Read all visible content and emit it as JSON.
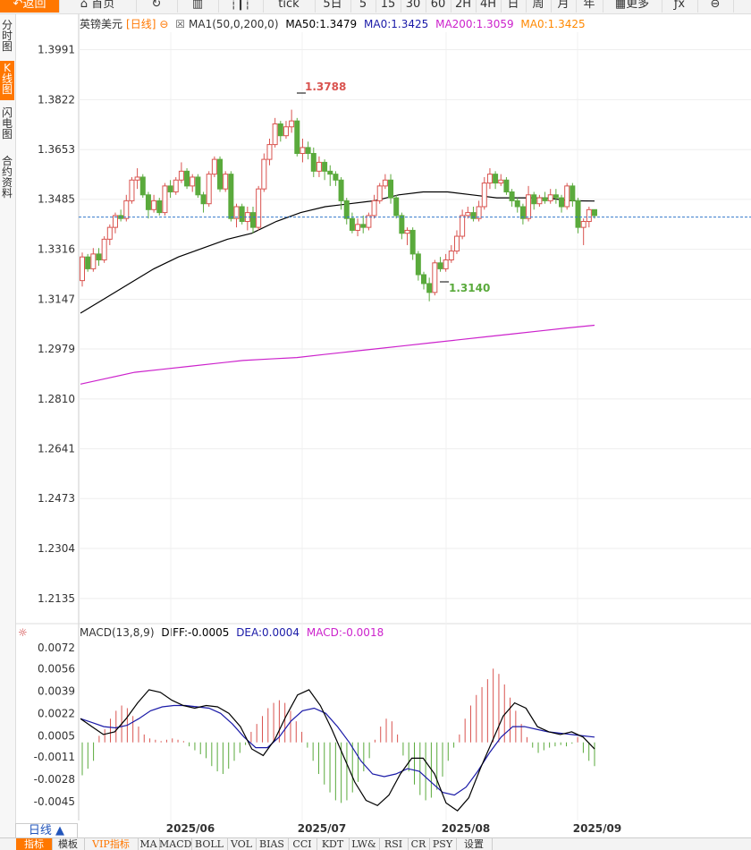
{
  "toolbar": {
    "back": "返回",
    "home": "首页",
    "tick": "tick",
    "day5": "5日",
    "m5": "5",
    "m15": "15",
    "m30": "30",
    "m60": "60",
    "h2": "2H",
    "h4": "4H",
    "day": "日",
    "week": "周",
    "month": "月",
    "year": "年",
    "more": "更多"
  },
  "sidebar": [
    "分时图",
    "K线图",
    "闪电图",
    "合约资料"
  ],
  "legend": {
    "symbol": "英镑美元",
    "period": "[日线]",
    "indicator": "MA1(50,0,200,0)",
    "ma50": "MA50:1.3479",
    "ma0a": "MA0:1.3425",
    "ma200": "MA200:1.3059",
    "ma0b": "MA0:1.3425"
  },
  "macd_legend": {
    "name": "MACD(13,8,9)",
    "diff": "DIFF:-0.0005",
    "dea": "DEA:0.0004",
    "macd": "MACD:-0.0018"
  },
  "period_button": "日线 ▲",
  "bottom_tabs": [
    "指标",
    "模板",
    "VIP指标",
    "MA",
    "MACD",
    "BOLL",
    "VOL",
    "BIAS",
    "CCI",
    "KDT",
    "LW&",
    "RSI",
    "CR",
    "PSY",
    "设置"
  ],
  "colors": {
    "up": "#d9534f",
    "down": "#5aaa3c",
    "ma50": "#000000",
    "ma200": "#cc22cc",
    "dea": "#1a1aa8",
    "current": "#3377cc"
  },
  "chart_data": {
    "type": "candlestick",
    "title": "英镑美元",
    "y_ticks": [
      1.3991,
      1.3822,
      1.3653,
      1.3485,
      1.3316,
      1.3147,
      1.2979,
      1.281,
      1.2641,
      1.2473,
      1.2304,
      1.2135
    ],
    "x_labels": [
      "2025/06",
      "2025/07",
      "2025/08",
      "2025/09"
    ],
    "current_price": 1.3425,
    "high_label": "1.3788",
    "low_label": "1.3140",
    "candles": [
      [
        1.321,
        1.329,
        1.319,
        1.3305
      ],
      [
        1.329,
        1.325,
        1.324,
        1.33
      ],
      [
        1.325,
        1.33,
        1.324,
        1.332
      ],
      [
        1.33,
        1.328,
        1.326,
        1.332
      ],
      [
        1.328,
        1.335,
        1.327,
        1.336
      ],
      [
        1.335,
        1.339,
        1.333,
        1.34
      ],
      [
        1.339,
        1.343,
        1.337,
        1.344
      ],
      [
        1.343,
        1.342,
        1.341,
        1.345
      ],
      [
        1.342,
        1.348,
        1.341,
        1.35
      ],
      [
        1.348,
        1.355,
        1.347,
        1.356
      ],
      [
        1.355,
        1.356,
        1.352,
        1.359
      ],
      [
        1.356,
        1.35,
        1.349,
        1.357
      ],
      [
        1.35,
        1.345,
        1.342,
        1.351
      ],
      [
        1.345,
        1.348,
        1.344,
        1.35
      ],
      [
        1.348,
        1.344,
        1.343,
        1.349
      ],
      [
        1.344,
        1.353,
        1.343,
        1.354
      ],
      [
        1.353,
        1.351,
        1.349,
        1.355
      ],
      [
        1.351,
        1.355,
        1.35,
        1.356
      ],
      [
        1.355,
        1.358,
        1.354,
        1.361
      ],
      [
        1.358,
        1.353,
        1.352,
        1.359
      ],
      [
        1.353,
        1.356,
        1.351,
        1.357
      ],
      [
        1.356,
        1.35,
        1.349,
        1.357
      ],
      [
        1.35,
        1.347,
        1.344,
        1.351
      ],
      [
        1.347,
        1.357,
        1.346,
        1.358
      ],
      [
        1.357,
        1.362,
        1.356,
        1.363
      ],
      [
        1.362,
        1.352,
        1.351,
        1.363
      ],
      [
        1.352,
        1.357,
        1.351,
        1.358
      ],
      [
        1.357,
        1.342,
        1.341,
        1.358
      ],
      [
        1.342,
        1.346,
        1.339,
        1.347
      ],
      [
        1.346,
        1.341,
        1.34,
        1.347
      ],
      [
        1.341,
        1.344,
        1.338,
        1.346
      ],
      [
        1.344,
        1.339,
        1.337,
        1.346
      ],
      [
        1.339,
        1.352,
        1.338,
        1.353
      ],
      [
        1.352,
        1.362,
        1.351,
        1.364
      ],
      [
        1.362,
        1.367,
        1.36,
        1.369
      ],
      [
        1.367,
        1.374,
        1.366,
        1.376
      ],
      [
        1.374,
        1.37,
        1.368,
        1.375
      ],
      [
        1.37,
        1.373,
        1.369,
        1.375
      ],
      [
        1.373,
        1.375,
        1.371,
        1.3788
      ],
      [
        1.375,
        1.364,
        1.363,
        1.376
      ],
      [
        1.364,
        1.366,
        1.361,
        1.369
      ],
      [
        1.366,
        1.364,
        1.362,
        1.368
      ],
      [
        1.364,
        1.358,
        1.356,
        1.366
      ],
      [
        1.358,
        1.361,
        1.356,
        1.363
      ],
      [
        1.361,
        1.358,
        1.355,
        1.362
      ],
      [
        1.358,
        1.357,
        1.353,
        1.36
      ],
      [
        1.357,
        1.355,
        1.353,
        1.358
      ],
      [
        1.355,
        1.348,
        1.345,
        1.356
      ],
      [
        1.348,
        1.342,
        1.34,
        1.349
      ],
      [
        1.342,
        1.338,
        1.337,
        1.344
      ],
      [
        1.338,
        1.34,
        1.336,
        1.342
      ],
      [
        1.34,
        1.339,
        1.337,
        1.343
      ],
      [
        1.339,
        1.343,
        1.338,
        1.344
      ],
      [
        1.343,
        1.348,
        1.342,
        1.35
      ],
      [
        1.348,
        1.353,
        1.347,
        1.354
      ],
      [
        1.353,
        1.355,
        1.352,
        1.357
      ],
      [
        1.355,
        1.349,
        1.347,
        1.357
      ],
      [
        1.349,
        1.343,
        1.342,
        1.35
      ],
      [
        1.343,
        1.337,
        1.335,
        1.344
      ],
      [
        1.337,
        1.338,
        1.333,
        1.339
      ],
      [
        1.338,
        1.33,
        1.328,
        1.339
      ],
      [
        1.33,
        1.323,
        1.321,
        1.331
      ],
      [
        1.323,
        1.32,
        1.318,
        1.324
      ],
      [
        1.32,
        1.317,
        1.314,
        1.322
      ],
      [
        1.317,
        1.327,
        1.316,
        1.328
      ],
      [
        1.327,
        1.325,
        1.324,
        1.329
      ],
      [
        1.325,
        1.328,
        1.324,
        1.33
      ],
      [
        1.328,
        1.331,
        1.327,
        1.333
      ],
      [
        1.331,
        1.336,
        1.33,
        1.338
      ],
      [
        1.336,
        1.343,
        1.335,
        1.345
      ],
      [
        1.343,
        1.344,
        1.342,
        1.346
      ],
      [
        1.344,
        1.342,
        1.341,
        1.346
      ],
      [
        1.342,
        1.346,
        1.341,
        1.348
      ],
      [
        1.346,
        1.354,
        1.345,
        1.356
      ],
      [
        1.354,
        1.357,
        1.352,
        1.359
      ],
      [
        1.357,
        1.354,
        1.352,
        1.358
      ],
      [
        1.354,
        1.355,
        1.353,
        1.357
      ],
      [
        1.355,
        1.351,
        1.35,
        1.356
      ],
      [
        1.351,
        1.348,
        1.346,
        1.352
      ],
      [
        1.348,
        1.346,
        1.344,
        1.349
      ],
      [
        1.346,
        1.342,
        1.34,
        1.347
      ],
      [
        1.342,
        1.35,
        1.341,
        1.353
      ],
      [
        1.35,
        1.347,
        1.345,
        1.351
      ],
      [
        1.347,
        1.349,
        1.346,
        1.35
      ],
      [
        1.349,
        1.348,
        1.347,
        1.351
      ],
      [
        1.348,
        1.35,
        1.347,
        1.352
      ],
      [
        1.35,
        1.349,
        1.347,
        1.352
      ],
      [
        1.349,
        1.346,
        1.344,
        1.35
      ],
      [
        1.346,
        1.353,
        1.345,
        1.354
      ],
      [
        1.353,
        1.348,
        1.346,
        1.354
      ],
      [
        1.348,
        1.339,
        1.337,
        1.349
      ],
      [
        1.339,
        1.341,
        1.333,
        1.342
      ],
      [
        1.341,
        1.345,
        1.339,
        1.346
      ],
      [
        1.345,
        1.343,
        1.342,
        1.345
      ]
    ],
    "ma50": [
      1.31,
      1.315,
      1.32,
      1.325,
      1.329,
      1.332,
      1.335,
      1.337,
      1.341,
      1.344,
      1.346,
      1.347,
      1.348,
      1.35,
      1.351,
      1.351,
      1.35,
      1.349,
      1.349,
      1.349,
      1.348,
      1.3479
    ],
    "ma200": [
      1.286,
      1.288,
      1.29,
      1.291,
      1.292,
      1.293,
      1.294,
      1.2945,
      1.295,
      1.296,
      1.297,
      1.298,
      1.299,
      1.3,
      1.301,
      1.302,
      1.303,
      1.304,
      1.305,
      1.3059
    ],
    "macd_y_ticks": [
      0.0072,
      0.0056,
      0.0039,
      0.0022,
      0.0005,
      -0.0011,
      -0.0028,
      -0.0045
    ],
    "macd_hist": [
      -0.0025,
      -0.002,
      -0.0014,
      0.0005,
      0.001,
      0.0018,
      0.0024,
      0.0028,
      0.0026,
      0.002,
      0.0012,
      0.0006,
      0.0003,
      0.0002,
      0.0001,
      0.0002,
      0.0003,
      0.0002,
      0.0001,
      -0.0003,
      -0.0006,
      -0.0009,
      -0.0012,
      -0.0018,
      -0.0022,
      -0.0024,
      -0.002,
      -0.0014,
      -0.0008,
      -0.0002,
      0.0008,
      0.0014,
      0.002,
      0.0026,
      0.003,
      0.0032,
      0.003,
      0.0024,
      0.0016,
      0.0008,
      -0.0004,
      -0.0014,
      -0.0024,
      -0.0032,
      -0.0038,
      -0.0044,
      -0.0046,
      -0.0044,
      -0.0038,
      -0.003,
      -0.0022,
      -0.0012,
      0.0002,
      0.0012,
      0.0018,
      0.0016,
      0.0006,
      -0.001,
      -0.0022,
      -0.0032,
      -0.004,
      -0.0044,
      -0.0042,
      -0.0036,
      -0.0026,
      -0.0014,
      -0.0004,
      0.0006,
      0.0018,
      0.0028,
      0.0036,
      0.0042,
      0.0048,
      0.0056,
      0.0052,
      0.0044,
      0.0034,
      0.0024,
      0.0014,
      0.0004,
      -0.0004,
      -0.0008,
      -0.0006,
      -0.0004,
      -0.0003,
      -0.0002,
      -0.0003,
      -0.0001,
      0.0004,
      -0.0008,
      -0.0014,
      -0.0018
    ],
    "macd_diff": [
      0.0018,
      0.0012,
      0.0006,
      0.0008,
      0.0018,
      0.003,
      0.004,
      0.0038,
      0.0032,
      0.0028,
      0.0026,
      0.0028,
      0.0027,
      0.0022,
      0.0012,
      -0.0005,
      -0.001,
      0.0002,
      0.002,
      0.0036,
      0.004,
      0.0028,
      0.001,
      -0.001,
      -0.003,
      -0.0044,
      -0.0048,
      -0.004,
      -0.0024,
      -0.0012,
      -0.0012,
      -0.0024,
      -0.0046,
      -0.0052,
      -0.0042,
      -0.002,
      0.0,
      0.002,
      0.003,
      0.0026,
      0.0012,
      0.0008,
      0.0006,
      0.0008,
      0.0004,
      -0.0005
    ],
    "macd_dea": [
      0.0018,
      0.0015,
      0.0012,
      0.0011,
      0.0013,
      0.0018,
      0.0024,
      0.0027,
      0.0028,
      0.0028,
      0.0027,
      0.0026,
      0.0022,
      0.0014,
      0.0004,
      -0.0004,
      -0.0004,
      0.0004,
      0.0016,
      0.0024,
      0.0026,
      0.0022,
      0.0012,
      0.0,
      -0.0014,
      -0.0024,
      -0.0026,
      -0.0024,
      -0.002,
      -0.0022,
      -0.003,
      -0.0038,
      -0.004,
      -0.0034,
      -0.0022,
      -0.0008,
      0.0004,
      0.0012,
      0.0012,
      0.001,
      0.0008,
      0.0007,
      0.0006,
      0.0005,
      0.0004
    ]
  }
}
